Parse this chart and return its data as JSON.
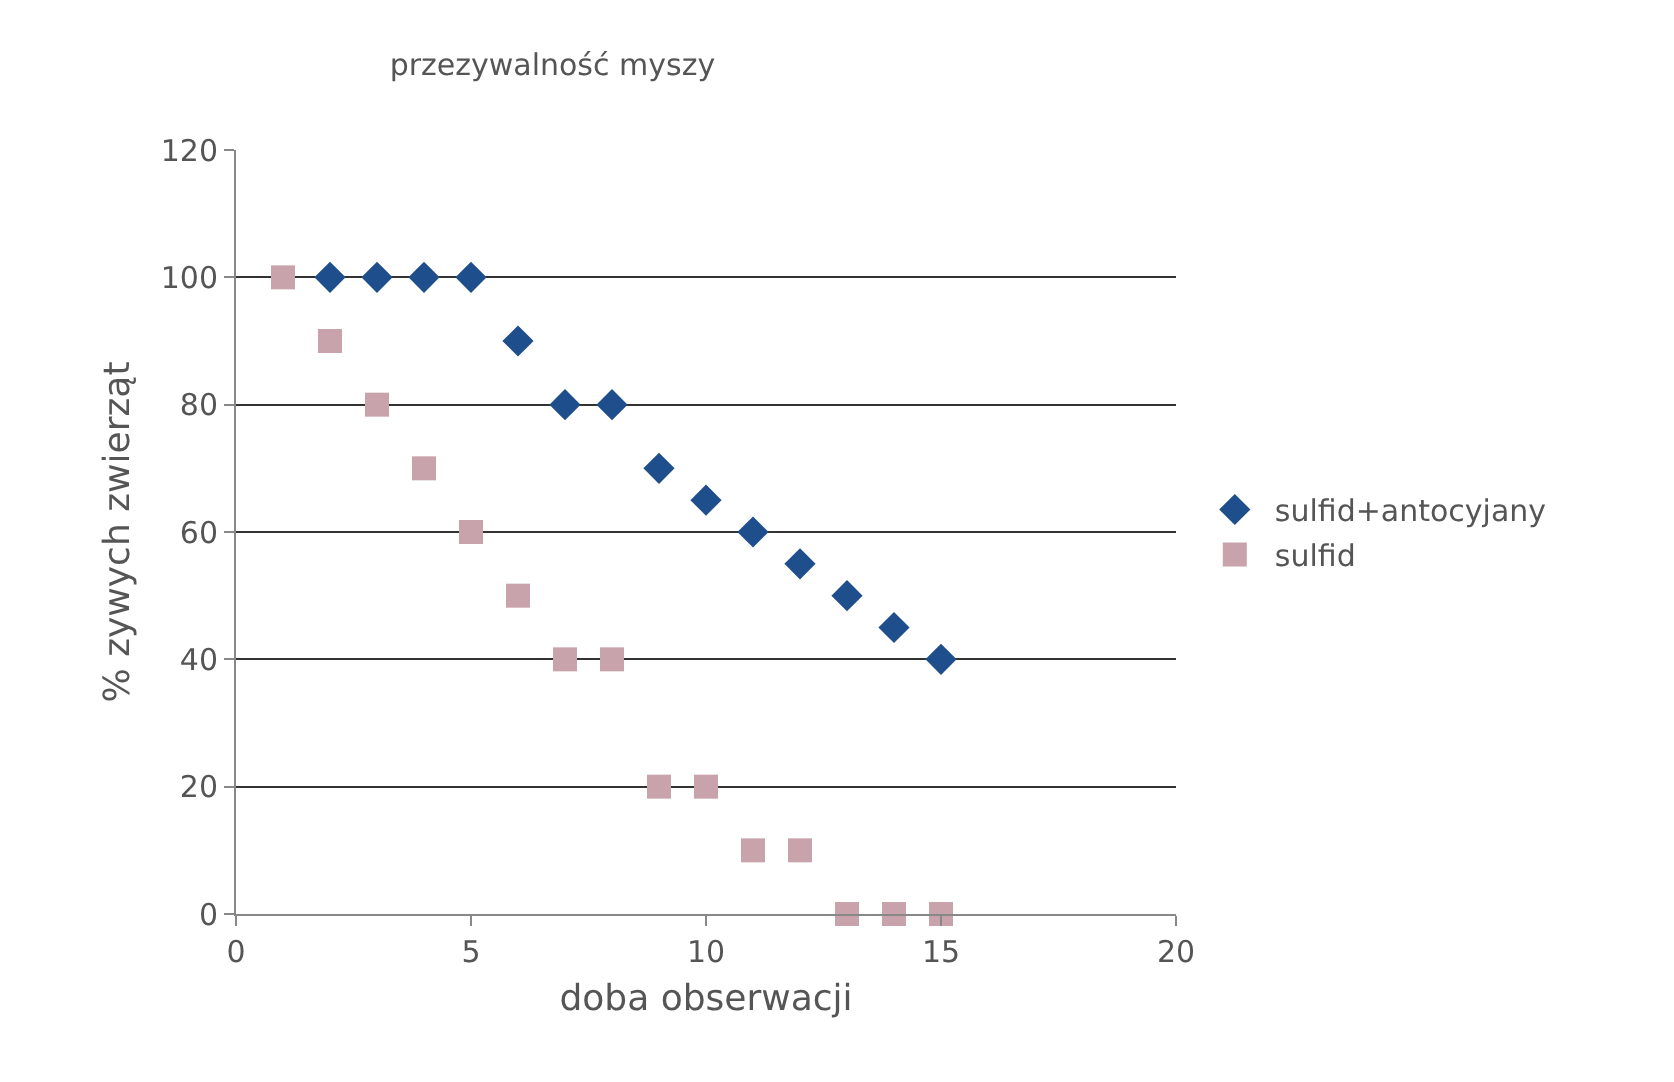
{
  "chart_data": {
    "type": "scatter",
    "title": "przezywalność myszy",
    "xlabel": "doba obserwacji",
    "ylabel": "% zywych zwierząt",
    "xlim": [
      0,
      20
    ],
    "xticks": [
      0,
      5,
      10,
      15,
      20
    ],
    "ylim": [
      0,
      120
    ],
    "yticks": [
      0,
      20,
      40,
      60,
      80,
      100,
      120
    ],
    "grid": "y",
    "legend": "right",
    "series": [
      {
        "name": "sulfid+antocyjany",
        "color": "#1f4e8c",
        "marker": "diamond",
        "x": [
          2,
          3,
          4,
          5,
          6,
          7,
          8,
          9,
          10,
          11,
          12,
          13,
          14,
          15
        ],
        "values": [
          100,
          100,
          100,
          100,
          90,
          80,
          80,
          70,
          65,
          60,
          55,
          50,
          45,
          40
        ]
      },
      {
        "name": "sulfid",
        "color": "#c9a3ac",
        "marker": "square",
        "x": [
          1,
          2,
          3,
          4,
          5,
          6,
          7,
          8,
          9,
          10,
          11,
          12,
          13,
          14,
          15
        ],
        "values": [
          100,
          90,
          80,
          70,
          60,
          50,
          40,
          40,
          20,
          20,
          10,
          10,
          0,
          0,
          0
        ]
      }
    ]
  }
}
